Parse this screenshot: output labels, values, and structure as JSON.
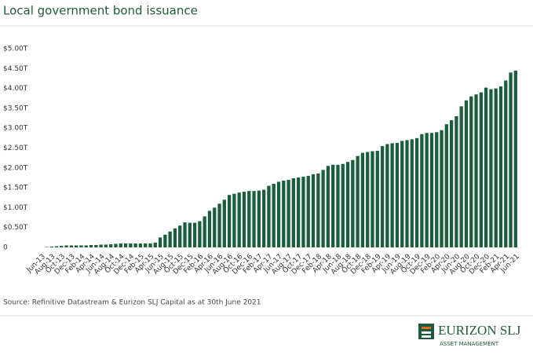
{
  "chart_data": {
    "type": "bar",
    "title": "Local government bond issuance",
    "source": "Source: Refinitive Datastream & Eurizon SLJ Capital as at 30th June 2021",
    "logo": {
      "name": "EURIZON SLJ",
      "tagline": "ASSET MANAGEMENT"
    },
    "color": "#1b5e3b",
    "categories": [
      "Jun-13",
      null,
      "Aug-13",
      null,
      "Oct-13",
      null,
      "Dec-13",
      null,
      "Feb-14",
      null,
      "Apr-14",
      null,
      "Jun-14",
      null,
      "Aug-14",
      null,
      "Oct-14",
      null,
      "Dec-14",
      null,
      "Feb-15",
      null,
      "Apr-15",
      null,
      "Jun-15",
      null,
      "Aug-15",
      null,
      "Oct-15",
      null,
      "Dec-15",
      null,
      "Feb-16",
      null,
      "Apr-16",
      null,
      "Jun-16",
      null,
      "Aug-16",
      null,
      "Oct-16",
      null,
      "Dec-16",
      null,
      "Feb-17",
      null,
      "Apr-17",
      null,
      "Jun-17",
      null,
      "Aug-17",
      null,
      "Oct-17",
      null,
      "Dec-17",
      null,
      "Feb-18",
      null,
      "Apr-18",
      null,
      "Jun-18",
      null,
      "Aug-18",
      null,
      "Oct-18",
      null,
      "Dec-18",
      null,
      "Feb-19",
      null,
      "Apr-19",
      null,
      "Jun-19",
      null,
      "Aug-19",
      null,
      "Oct-19",
      null,
      "Dec-19",
      null,
      "Feb-20",
      null,
      "Apr-20",
      null,
      "Jun-20",
      null,
      "Aug-20",
      null,
      "Oct-20",
      null,
      "Dec-20",
      null,
      "Feb-21",
      null,
      "Apr-21",
      null,
      "Jun-21"
    ],
    "values": [
      0,
      0.01,
      0.02,
      0.03,
      0.04,
      0.05,
      0.05,
      0.05,
      0.05,
      0.05,
      0.06,
      0.06,
      0.07,
      0.07,
      0.08,
      0.09,
      0.1,
      0.1,
      0.1,
      0.1,
      0.1,
      0.1,
      0.1,
      0.12,
      0.25,
      0.32,
      0.4,
      0.48,
      0.55,
      0.63,
      0.62,
      0.62,
      0.66,
      0.78,
      0.92,
      1.0,
      1.1,
      1.2,
      1.32,
      1.35,
      1.38,
      1.4,
      1.42,
      1.42,
      1.43,
      1.45,
      1.55,
      1.6,
      1.65,
      1.68,
      1.7,
      1.74,
      1.76,
      1.78,
      1.8,
      1.84,
      1.86,
      1.95,
      2.05,
      2.08,
      2.08,
      2.1,
      2.15,
      2.2,
      2.3,
      2.38,
      2.4,
      2.42,
      2.43,
      2.55,
      2.6,
      2.62,
      2.63,
      2.68,
      2.7,
      2.72,
      2.75,
      2.85,
      2.88,
      2.88,
      2.9,
      2.95,
      3.1,
      3.2,
      3.3,
      3.55,
      3.7,
      3.8,
      3.85,
      3.9,
      4.02,
      3.98,
      4.0,
      4.05,
      4.2,
      4.4,
      4.45
    ],
    "ylim": [
      0,
      5
    ],
    "yticks": [
      0,
      {
        "value": 0.5,
        "label": "$0.50T"
      },
      {
        "value": 1,
        "label": "$1.00T"
      },
      {
        "value": 1.5,
        "label": "$1.50T"
      },
      {
        "value": 2,
        "label": "$2.00T"
      },
      {
        "value": 2.5,
        "label": "$2.50T"
      },
      {
        "value": 3,
        "label": "$3.00T"
      },
      {
        "value": 3.5,
        "label": "$3.50T"
      },
      {
        "value": 4,
        "label": "$4.00T"
      },
      {
        "value": 4.5,
        "label": "$4.50T"
      },
      {
        "value": 5,
        "label": "$5.00T"
      }
    ],
    "grid": false
  }
}
